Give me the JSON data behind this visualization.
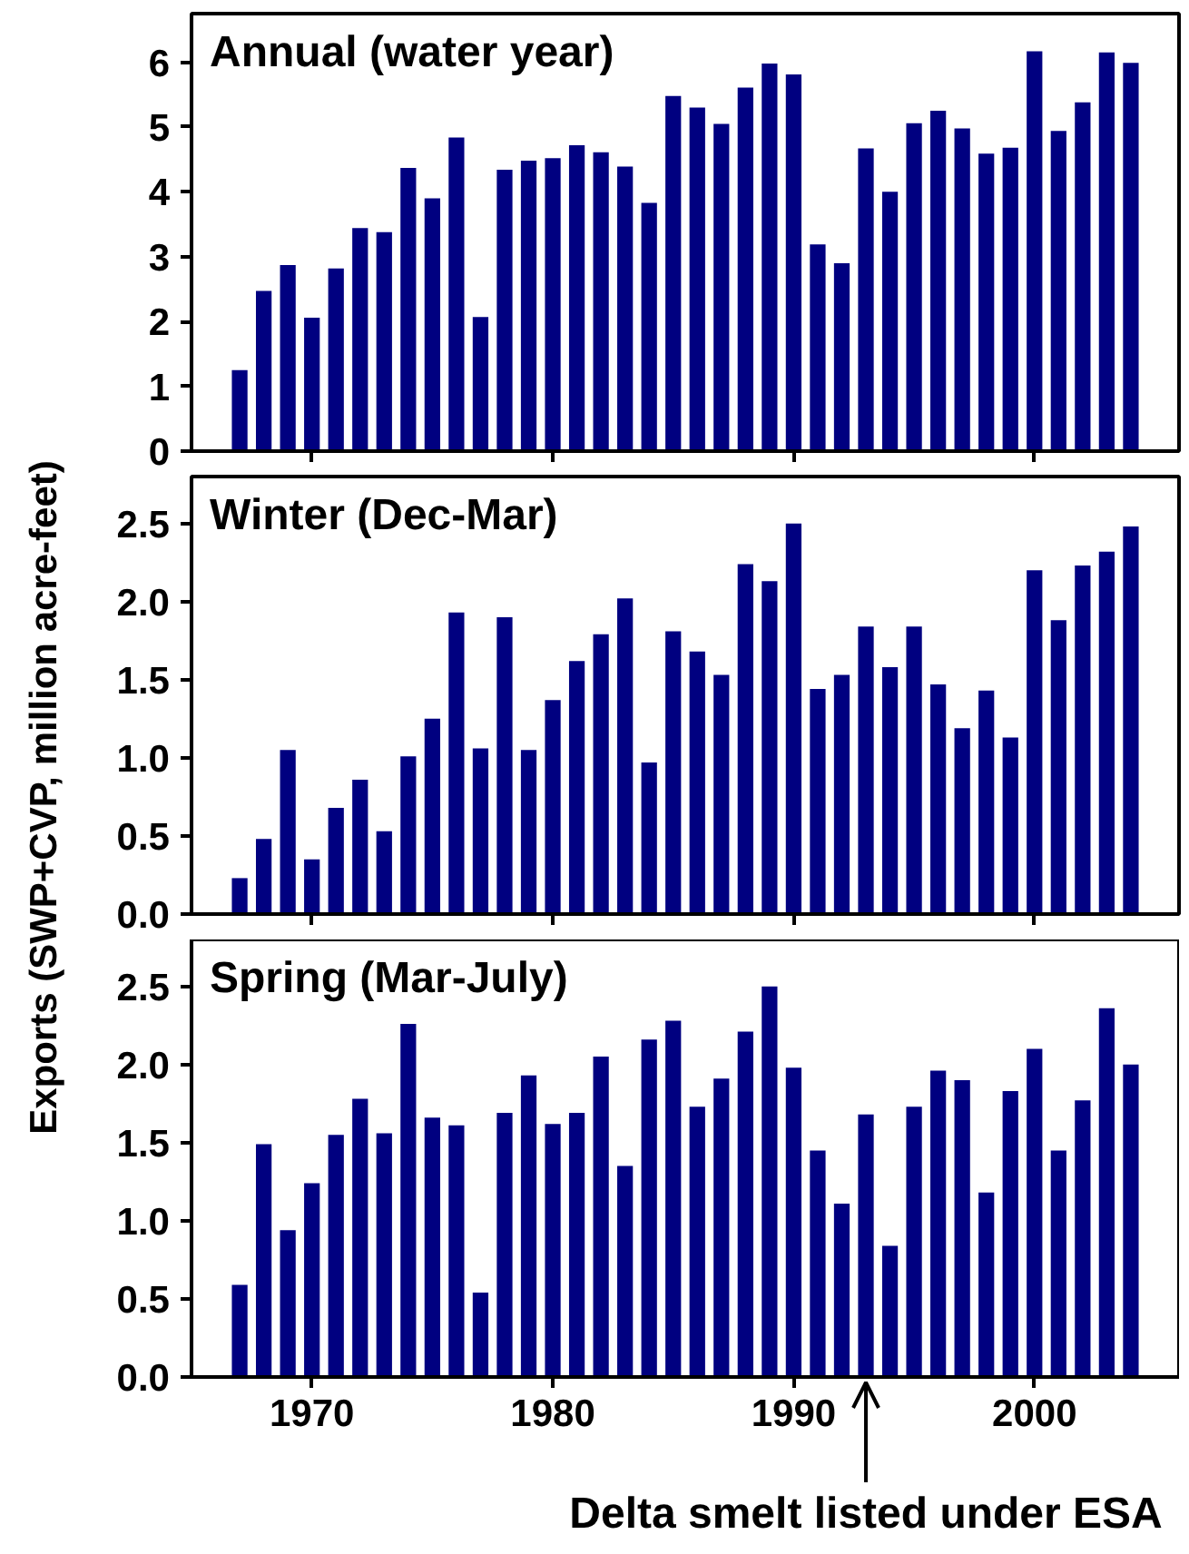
{
  "chart_data": [
    {
      "type": "bar",
      "title": "Annual (water year)",
      "color": "#000080",
      "x": [
        1967,
        1968,
        1969,
        1970,
        1971,
        1972,
        1973,
        1974,
        1975,
        1976,
        1977,
        1978,
        1979,
        1980,
        1981,
        1982,
        1983,
        1984,
        1985,
        1986,
        1987,
        1988,
        1989,
        1990,
        1991,
        1992,
        1993,
        1994,
        1995,
        1996,
        1997,
        1998,
        1999,
        2000,
        2001,
        2002,
        2003,
        2004
      ],
      "values": [
        1.25,
        2.47,
        2.87,
        2.06,
        2.82,
        3.44,
        3.38,
        4.37,
        3.9,
        4.84,
        2.07,
        4.34,
        4.48,
        4.52,
        4.72,
        4.61,
        4.39,
        3.83,
        5.48,
        5.3,
        5.05,
        5.61,
        5.98,
        5.81,
        3.19,
        2.9,
        4.67,
        4.0,
        5.06,
        5.25,
        4.98,
        4.59,
        4.68,
        6.17,
        4.94,
        5.38,
        6.15,
        5.99
      ],
      "xlim": [
        1965,
        2006
      ],
      "xticks": [
        1970,
        1980,
        1990,
        2000
      ],
      "ylim": [
        0,
        6.75
      ],
      "yticks": [
        0,
        1,
        2,
        3,
        4,
        5,
        6
      ],
      "tick_labels": "y"
    },
    {
      "type": "bar",
      "title": "Winter (Dec-Mar)",
      "ylabel": "Exports (SWP+CVP, million acre-feet)",
      "color": "#000080",
      "x": [
        1967,
        1968,
        1969,
        1970,
        1971,
        1972,
        1973,
        1974,
        1975,
        1976,
        1977,
        1978,
        1979,
        1980,
        1981,
        1982,
        1983,
        1984,
        1985,
        1986,
        1987,
        1988,
        1989,
        1990,
        1991,
        1992,
        1993,
        1994,
        1995,
        1996,
        1997,
        1998,
        1999,
        2000,
        2001,
        2002,
        2003,
        2004
      ],
      "values": [
        0.23,
        0.48,
        1.05,
        0.35,
        0.68,
        0.86,
        0.53,
        1.01,
        1.25,
        1.93,
        1.06,
        1.9,
        1.05,
        1.37,
        1.62,
        1.79,
        2.02,
        0.97,
        1.81,
        1.68,
        1.53,
        2.24,
        2.13,
        2.5,
        1.44,
        1.53,
        1.84,
        1.58,
        1.84,
        1.47,
        1.19,
        1.43,
        1.13,
        2.2,
        1.88,
        2.23,
        2.32,
        2.48
      ],
      "xlim": [
        1965,
        2006
      ],
      "xticks": [
        1970,
        1980,
        1990,
        2000
      ],
      "ylim": [
        0,
        2.8
      ],
      "yticks": [
        {
          "value": 0,
          "label": "0.0"
        },
        0.5,
        {
          "value": 1,
          "label": "1.0"
        },
        1.5,
        {
          "value": 2,
          "label": "2.0"
        },
        2.5
      ],
      "tick_labels": "y"
    },
    {
      "type": "bar",
      "title": "Spring (Mar-July)",
      "color": "#000080",
      "x": [
        1967,
        1968,
        1969,
        1970,
        1971,
        1972,
        1973,
        1974,
        1975,
        1976,
        1977,
        1978,
        1979,
        1980,
        1981,
        1982,
        1983,
        1984,
        1985,
        1986,
        1987,
        1988,
        1989,
        1990,
        1991,
        1992,
        1993,
        1994,
        1995,
        1996,
        1997,
        1998,
        1999,
        2000,
        2001,
        2002,
        2003,
        2004
      ],
      "values": [
        0.59,
        1.49,
        0.94,
        1.24,
        1.55,
        1.78,
        1.56,
        2.26,
        1.66,
        1.61,
        0.54,
        1.69,
        1.93,
        1.62,
        1.69,
        2.05,
        1.35,
        2.16,
        2.28,
        1.73,
        1.91,
        2.21,
        2.5,
        1.98,
        1.45,
        1.11,
        1.68,
        0.84,
        1.73,
        1.96,
        1.9,
        1.18,
        1.83,
        2.1,
        1.45,
        1.77,
        2.36,
        2.0
      ],
      "xlim": [
        1965,
        2006
      ],
      "xticks": [
        1970,
        1980,
        1990,
        2000
      ],
      "ylim": [
        0,
        2.8
      ],
      "yticks": [
        {
          "value": 0,
          "label": "0.0"
        },
        0.5,
        {
          "value": 1,
          "label": "1.0"
        },
        1.5,
        {
          "value": 2,
          "label": "2.0"
        },
        2.5
      ],
      "annotations": [
        {
          "text": "Delta smelt listed under ESA",
          "x": 1993,
          "y": 0
        }
      ]
    }
  ]
}
